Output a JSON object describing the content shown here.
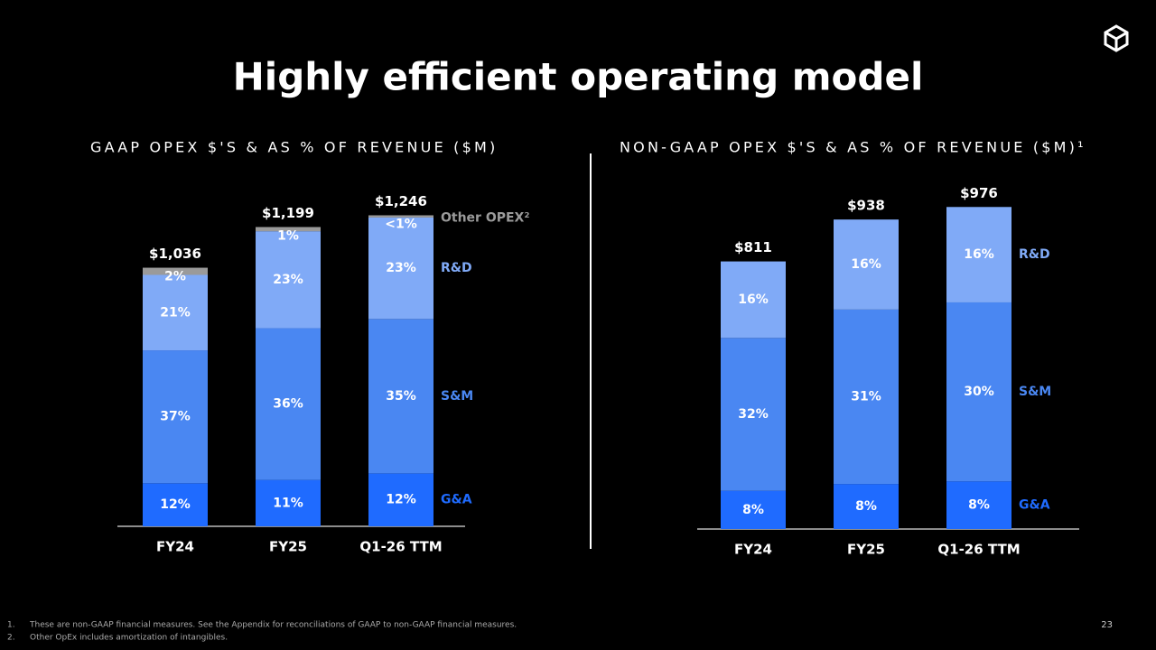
{
  "title": "Highly efficient operating model",
  "page_number": "23",
  "footnotes": [
    {
      "marker": "1.",
      "text": "These are non-GAAP financial measures. See the Appendix for reconciliations of GAAP to non-GAAP financial measures."
    },
    {
      "marker": "2.",
      "text": "Other OpEx includes amortization of intangibles."
    }
  ],
  "chart_data": [
    {
      "type": "bar",
      "stacked": true,
      "title": "GAAP OPEX $'S & AS % OF REVENUE ($M)",
      "categories": [
        "FY24",
        "FY25",
        "Q1-26 TTM"
      ],
      "totals": {
        "values": [
          1036,
          1199,
          1246
        ],
        "value_labels": [
          "$1,036",
          "$1,199",
          "$1,246"
        ]
      },
      "series": [
        {
          "name": "G&A",
          "color": "#1f6bff",
          "values": [
            12,
            11,
            12
          ],
          "value_labels": [
            "12%",
            "11%",
            "12%"
          ]
        },
        {
          "name": "S&M",
          "color": "#4a87f2",
          "values": [
            37,
            36,
            35
          ],
          "value_labels": [
            "37%",
            "36%",
            "35%"
          ]
        },
        {
          "name": "R&D",
          "color": "#80aaf7",
          "values": [
            21,
            23,
            23
          ],
          "value_labels": [
            "21%",
            "23%",
            "23%"
          ]
        },
        {
          "name": "Other OPEX²",
          "color": "#9a9a9a",
          "values": [
            2,
            1,
            0.5
          ],
          "value_labels": [
            "2%",
            "1%",
            "<1%"
          ]
        }
      ]
    },
    {
      "type": "bar",
      "stacked": true,
      "title": "NON-GAAP OPEX $'S & AS % OF REVENUE ($M)¹",
      "categories": [
        "FY24",
        "FY25",
        "Q1-26 TTM"
      ],
      "totals": {
        "values": [
          811,
          938,
          976
        ],
        "value_labels": [
          "$811",
          "$938",
          "$976"
        ]
      },
      "series": [
        {
          "name": "G&A",
          "color": "#1f6bff",
          "values": [
            8,
            8,
            8
          ],
          "value_labels": [
            "8%",
            "8%",
            "8%"
          ]
        },
        {
          "name": "S&M",
          "color": "#4a87f2",
          "values": [
            32,
            31,
            30
          ],
          "value_labels": [
            "32%",
            "31%",
            "30%"
          ]
        },
        {
          "name": "R&D",
          "color": "#80aaf7",
          "values": [
            16,
            16,
            16
          ],
          "value_labels": [
            "16%",
            "16%",
            "16%"
          ]
        }
      ]
    }
  ]
}
